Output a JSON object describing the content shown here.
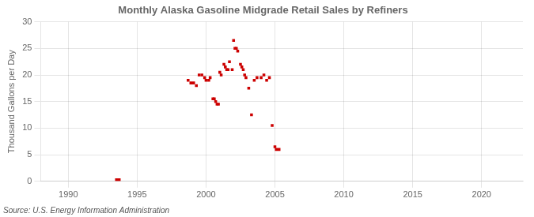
{
  "chart_data": {
    "type": "scatter",
    "title": "Monthly Alaska Gasoline Midgrade Retail Sales by Refiners",
    "ylabel": "Thousand Gallons per Day",
    "annotations": [
      "Source: U.S. Energy Information Administration"
    ],
    "color": "#cc0000",
    "marker": "square",
    "grid": true,
    "xlim": [
      1988,
      2023
    ],
    "ylim": [
      0,
      30
    ],
    "xticks": [
      1990,
      1995,
      2000,
      2005,
      2010,
      2015,
      2020
    ],
    "yticks": [
      0,
      5,
      10,
      15,
      20,
      25,
      30
    ],
    "x": [
      1993.5,
      1993.7,
      1998.7,
      1998.9,
      1999.1,
      1999.3,
      1999.5,
      1999.7,
      1999.9,
      2000.0,
      2000.2,
      2000.3,
      2000.5,
      2000.6,
      2000.7,
      2000.8,
      2000.9,
      2001.0,
      2001.1,
      2001.3,
      2001.4,
      2001.5,
      2001.6,
      2001.7,
      2001.9,
      2002.0,
      2002.1,
      2002.2,
      2002.3,
      2002.5,
      2002.6,
      2002.7,
      2002.8,
      2002.9,
      2003.1,
      2003.3,
      2003.5,
      2003.7,
      2004.0,
      2004.2,
      2004.4,
      2004.6,
      2004.8,
      2005.0,
      2005.1,
      2005.3
    ],
    "values": [
      0.3,
      0.3,
      19.0,
      18.5,
      18.5,
      18.0,
      20.0,
      20.0,
      19.5,
      19.0,
      19.0,
      19.5,
      15.5,
      15.5,
      15.0,
      14.5,
      14.5,
      20.5,
      20.0,
      22.0,
      21.5,
      21.0,
      21.0,
      22.5,
      21.0,
      26.5,
      25.0,
      25.0,
      24.5,
      22.0,
      21.5,
      21.0,
      20.0,
      19.5,
      17.5,
      12.5,
      19.0,
      19.5,
      19.5,
      20.0,
      19.0,
      19.5,
      10.5,
      6.5,
      6.0,
      6.0
    ]
  }
}
